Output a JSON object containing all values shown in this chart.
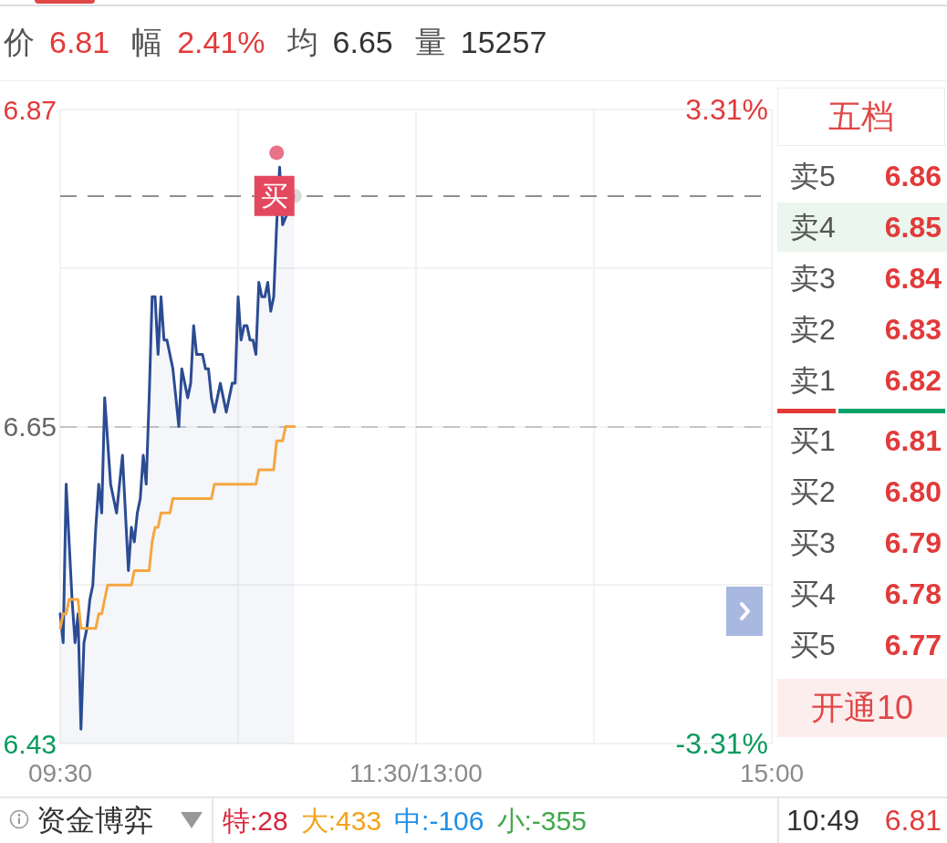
{
  "chart_data": {
    "type": "line",
    "categories": [
      "09:30",
      null,
      null,
      null,
      null,
      null,
      null,
      null,
      null,
      null,
      null,
      null,
      null,
      null,
      null,
      null,
      null,
      null,
      null,
      null,
      null,
      null,
      null,
      null,
      null,
      null,
      null,
      null,
      null,
      null,
      null,
      null,
      null,
      null,
      null,
      null,
      null,
      null,
      null,
      null,
      null,
      null,
      null,
      null,
      null,
      null,
      null,
      null,
      null,
      null,
      null,
      null,
      null,
      null,
      null,
      null,
      null,
      null,
      null,
      null,
      null,
      null,
      null,
      null,
      null,
      null,
      null,
      null,
      null,
      null,
      null,
      null,
      null,
      null,
      null,
      null,
      null,
      null,
      null,
      null,
      null,
      null,
      null,
      null,
      null,
      null,
      null,
      null,
      null,
      null,
      null,
      null,
      null,
      null,
      null,
      null,
      null,
      null,
      null,
      null,
      null,
      null,
      null,
      null,
      null,
      null,
      null,
      null,
      null,
      null,
      null,
      null,
      null,
      null,
      null,
      null,
      null,
      null,
      null,
      null,
      "11:30/13:00",
      null,
      null,
      null,
      null,
      null,
      null,
      null,
      null,
      null,
      null,
      null,
      null,
      null,
      null,
      null,
      null,
      null,
      null,
      null,
      null,
      null,
      null,
      null,
      null,
      null,
      null,
      null,
      null,
      null,
      null,
      null,
      null,
      null,
      null,
      null,
      null,
      null,
      null,
      null,
      null,
      null,
      null,
      null,
      null,
      null,
      null,
      null,
      null,
      null,
      null,
      null,
      null,
      null,
      null,
      null,
      null,
      null,
      null,
      null,
      null,
      null,
      null,
      null,
      null,
      null,
      null,
      null,
      null,
      null,
      null,
      null,
      null,
      null,
      null,
      null,
      null,
      null,
      null,
      null,
      null,
      null,
      null,
      null,
      null,
      null,
      null,
      null,
      null,
      null,
      null,
      null,
      null,
      null,
      null,
      null,
      null,
      null,
      null,
      null,
      null,
      null,
      null,
      null,
      null,
      null,
      null,
      null,
      null,
      null,
      null,
      null,
      null,
      null,
      null,
      null,
      null,
      null,
      null,
      null,
      "15:00"
    ],
    "ylim": [
      6.43,
      6.87
    ],
    "yticks": [
      6.43,
      {
        "value": 6.54,
        "label": null
      },
      6.65,
      {
        "value": 6.76,
        "label": null
      },
      6.87
    ],
    "y2lim": [
      -3.31,
      3.31
    ],
    "y2ticks": [
      {
        "value": -3.31,
        "label": "-3.31%"
      },
      {
        "value": 3.31,
        "label": "3.31%"
      }
    ],
    "grid": true,
    "series": [
      {
        "type": "area",
        "color": "#2b4b93",
        "values": [
          6.52,
          6.5,
          6.61,
          6.57,
          6.53,
          6.5,
          6.52,
          6.44,
          6.5,
          6.51,
          6.53,
          6.54,
          6.58,
          6.61,
          6.59,
          6.67,
          6.64,
          6.61,
          6.6,
          6.59,
          6.61,
          6.63,
          6.59,
          6.55,
          6.58,
          6.57,
          6.59,
          6.6,
          6.63,
          6.61,
          6.67,
          6.74,
          6.74,
          6.7,
          6.74,
          6.71,
          6.71,
          6.7,
          6.69,
          6.67,
          6.65,
          6.69,
          6.68,
          6.67,
          6.68,
          6.72,
          6.7,
          6.7,
          6.7,
          6.69,
          6.69,
          6.67,
          6.66,
          6.67,
          6.68,
          6.67,
          6.66,
          6.67,
          6.68,
          6.68,
          6.74,
          6.71,
          6.72,
          6.72,
          6.71,
          6.71,
          6.7,
          6.75,
          6.74,
          6.74,
          6.75,
          6.73,
          6.74,
          6.79,
          6.83,
          6.79,
          null,
          null,
          null,
          6.81,
          null,
          null,
          null,
          null,
          null,
          null,
          null,
          null,
          null,
          null,
          null,
          null,
          null,
          null,
          null,
          null,
          null,
          null,
          null,
          null,
          null,
          null,
          null,
          null,
          null,
          null,
          null,
          null,
          null,
          null,
          null,
          null,
          null,
          null,
          null,
          null,
          null,
          null,
          null,
          null,
          null,
          null,
          null,
          null,
          null,
          null,
          null,
          null,
          null,
          null,
          null,
          null,
          null,
          null,
          null,
          null,
          null,
          null,
          null,
          null,
          null,
          null,
          null,
          null,
          null,
          null,
          null,
          null,
          null,
          null,
          null,
          null,
          null,
          null,
          null,
          null,
          null,
          null,
          null,
          null,
          null,
          null,
          null,
          null,
          null,
          null,
          null,
          null,
          null,
          null,
          null,
          null,
          null,
          null,
          null,
          null,
          null,
          null,
          null,
          null,
          null,
          null,
          null,
          null,
          null,
          null,
          null,
          null,
          null,
          null,
          null,
          null,
          null,
          null,
          null,
          null,
          null,
          null,
          null,
          null,
          null,
          null,
          null,
          null,
          null,
          null,
          null,
          null,
          null,
          null,
          null,
          null,
          null,
          null,
          null,
          null,
          null,
          null,
          null,
          null,
          null,
          null,
          null,
          null,
          null,
          null,
          null,
          null,
          null,
          null,
          null,
          null,
          null,
          null,
          null,
          null,
          null,
          null,
          null,
          null,
          null
        ]
      },
      {
        "color": "#f5a640",
        "values": [
          6.51,
          6.52,
          6.52,
          6.53,
          6.53,
          6.53,
          6.53,
          6.51,
          6.51,
          6.51,
          6.51,
          6.51,
          6.51,
          6.52,
          6.52,
          6.53,
          6.54,
          6.54,
          6.54,
          6.54,
          6.54,
          6.54,
          6.54,
          6.54,
          6.54,
          6.55,
          6.55,
          6.55,
          6.55,
          6.55,
          6.55,
          6.57,
          6.58,
          6.58,
          6.59,
          6.59,
          6.59,
          6.59,
          6.6,
          6.6,
          6.6,
          6.6,
          6.6,
          6.6,
          6.6,
          6.6,
          6.6,
          6.6,
          6.6,
          6.6,
          6.6,
          6.6,
          6.61,
          6.61,
          6.61,
          6.61,
          6.61,
          6.61,
          6.61,
          6.61,
          6.61,
          6.61,
          6.61,
          6.61,
          6.61,
          6.61,
          6.61,
          6.62,
          6.62,
          6.62,
          6.62,
          6.62,
          6.62,
          6.64,
          6.64,
          6.64,
          6.65,
          6.65,
          6.65,
          6.65,
          null,
          null,
          null,
          null,
          null,
          null,
          null,
          null,
          null,
          null,
          null,
          null,
          null,
          null,
          null,
          null,
          null,
          null,
          null,
          null,
          null,
          null,
          null,
          null,
          null,
          null,
          null,
          null,
          null,
          null,
          null,
          null,
          null,
          null,
          null,
          null,
          null,
          null,
          null,
          null,
          null,
          null,
          null,
          null,
          null,
          null,
          null,
          null,
          null,
          null,
          null,
          null,
          null,
          null,
          null,
          null,
          null,
          null,
          null,
          null,
          null,
          null,
          null,
          null,
          null,
          null,
          null,
          null,
          null,
          null,
          null,
          null,
          null,
          null,
          null,
          null,
          null,
          null,
          null,
          null,
          null,
          null,
          null,
          null,
          null,
          null,
          null,
          null,
          null,
          null,
          null,
          null,
          null,
          null,
          null,
          null,
          null,
          null,
          null,
          null,
          null,
          null,
          null,
          null,
          null,
          null,
          null,
          null,
          null,
          null,
          null,
          null,
          null,
          null,
          null,
          null,
          null,
          null,
          null,
          null,
          null,
          null,
          null,
          null,
          null,
          null,
          null,
          null,
          null,
          null,
          null,
          null,
          null,
          null,
          null,
          null,
          null,
          null,
          null,
          null,
          null,
          null,
          null,
          null,
          null,
          null,
          null,
          null,
          null,
          null,
          null,
          null,
          null,
          null,
          null,
          null,
          null,
          null,
          null,
          null,
          null
        ]
      },
      {
        "type": "scatter",
        "color": "#e2506c",
        "values": [
          null,
          null,
          null,
          null,
          null,
          null,
          null,
          null,
          null,
          null,
          null,
          null,
          null,
          null,
          null,
          null,
          null,
          null,
          null,
          null,
          null,
          null,
          null,
          null,
          null,
          null,
          null,
          null,
          null,
          null,
          null,
          null,
          null,
          null,
          null,
          null,
          null,
          null,
          null,
          null,
          null,
          null,
          null,
          null,
          null,
          null,
          null,
          null,
          null,
          null,
          null,
          null,
          null,
          null,
          null,
          null,
          null,
          null,
          null,
          null,
          null,
          null,
          null,
          null,
          null,
          null,
          null,
          null,
          null,
          null,
          null,
          null,
          null,
          6.84,
          null,
          null,
          null,
          null,
          null,
          null,
          null,
          null,
          null,
          null,
          null,
          null,
          null,
          null,
          null,
          null,
          null,
          null,
          null,
          null,
          null,
          null,
          null,
          null,
          null,
          null,
          null,
          null,
          null,
          null,
          null,
          null,
          null,
          null,
          null,
          null,
          null,
          null,
          null,
          null,
          null,
          null,
          null,
          null,
          null,
          null,
          null,
          null,
          null,
          null,
          null,
          null,
          null,
          null,
          null,
          null,
          null,
          null,
          null,
          null,
          null,
          null,
          null,
          null,
          null,
          null,
          null,
          null,
          null,
          null,
          null,
          null,
          null,
          null,
          null,
          null,
          null,
          null,
          null,
          null,
          null,
          null,
          null,
          null,
          null,
          null,
          null,
          null,
          null,
          null,
          null,
          null,
          null,
          null,
          null,
          null,
          null,
          null,
          null,
          null,
          null,
          null,
          null,
          null,
          null,
          null,
          null,
          null,
          null,
          null,
          null,
          null,
          null,
          null,
          null,
          null,
          null,
          null,
          null,
          null,
          null,
          null,
          null,
          null,
          null,
          null,
          null,
          null,
          null,
          null,
          null,
          null,
          null,
          null,
          null,
          null,
          null,
          null,
          null,
          null,
          null,
          null,
          null,
          null,
          null,
          null,
          null,
          null,
          null,
          null,
          null,
          null,
          null,
          null,
          null,
          null,
          null,
          null,
          null,
          null,
          null,
          null,
          null,
          null,
          null,
          null,
          null
        ]
      },
      {
        "type": "scatter",
        "color": "#cfcfcf",
        "values": [
          null,
          null,
          null,
          null,
          null,
          null,
          null,
          null,
          null,
          null,
          null,
          null,
          null,
          null,
          null,
          null,
          null,
          null,
          null,
          null,
          null,
          null,
          null,
          null,
          null,
          null,
          null,
          null,
          null,
          null,
          null,
          null,
          null,
          null,
          null,
          null,
          null,
          null,
          null,
          null,
          null,
          null,
          null,
          null,
          null,
          null,
          null,
          null,
          null,
          null,
          null,
          null,
          null,
          null,
          null,
          null,
          null,
          null,
          null,
          null,
          null,
          null,
          null,
          null,
          null,
          null,
          null,
          null,
          null,
          null,
          null,
          null,
          null,
          null,
          null,
          null,
          null,
          null,
          null,
          6.81,
          null,
          null,
          null,
          null,
          null,
          null,
          null,
          null,
          null,
          null,
          null,
          null,
          null,
          null,
          null,
          null,
          null,
          null,
          null,
          null,
          null,
          null,
          null,
          null,
          null,
          null,
          null,
          null,
          null,
          null,
          null,
          null,
          null,
          null,
          null,
          null,
          null,
          null,
          null,
          null,
          null,
          null,
          null,
          null,
          null,
          null,
          null,
          null,
          null,
          null,
          null,
          null,
          null,
          null,
          null,
          null,
          null,
          null,
          null,
          null,
          null,
          null,
          null,
          null,
          null,
          null,
          null,
          null,
          null,
          null,
          null,
          null,
          null,
          null,
          null,
          null,
          null,
          null,
          null,
          null,
          null,
          null,
          null,
          null,
          null,
          null,
          null,
          null,
          null,
          null,
          null,
          null,
          null,
          null,
          null,
          null,
          null,
          null,
          null,
          null,
          null,
          null,
          null,
          null,
          null,
          null,
          null,
          null,
          null,
          null,
          null,
          null,
          null,
          null,
          null,
          null,
          null,
          null,
          null,
          null,
          null,
          null,
          null,
          null,
          null,
          null,
          null,
          null,
          null,
          null,
          null,
          null,
          null,
          null,
          null,
          null,
          null,
          null,
          null,
          null,
          null,
          null,
          null,
          null,
          null,
          null,
          null,
          null,
          null,
          null,
          null,
          null,
          null,
          null,
          null,
          null,
          null,
          null,
          null,
          null,
          null
        ]
      }
    ],
    "ref_lines": [
      {
        "axis": "y",
        "value": 6.65,
        "color": "#c4c4c4",
        "line_style": "dashed"
      },
      {
        "axis": "y",
        "value": 6.81,
        "color": "#8f8f8f",
        "line_style": "dashed"
      }
    ],
    "annotations": [
      "价",
      "6.81",
      "幅",
      "2.41%",
      "均",
      "6.65",
      "量",
      "15257",
      "五档",
      "卖5",
      "6.86",
      "卖4",
      "6.85",
      "卖3",
      "6.84",
      "卖2",
      "6.83",
      "卖1",
      "6.82",
      "买1",
      "6.81",
      "买2",
      "6.80",
      "买3",
      "6.79",
      "买4",
      "6.78",
      "买5",
      "6.77",
      "开通10",
      "资金博弈",
      "特:28",
      "大:433",
      "中:-106",
      "小:-355",
      "10:49",
      "6.81",
      {
        "text": "买",
        "y": 6.81
      }
    ]
  }
}
